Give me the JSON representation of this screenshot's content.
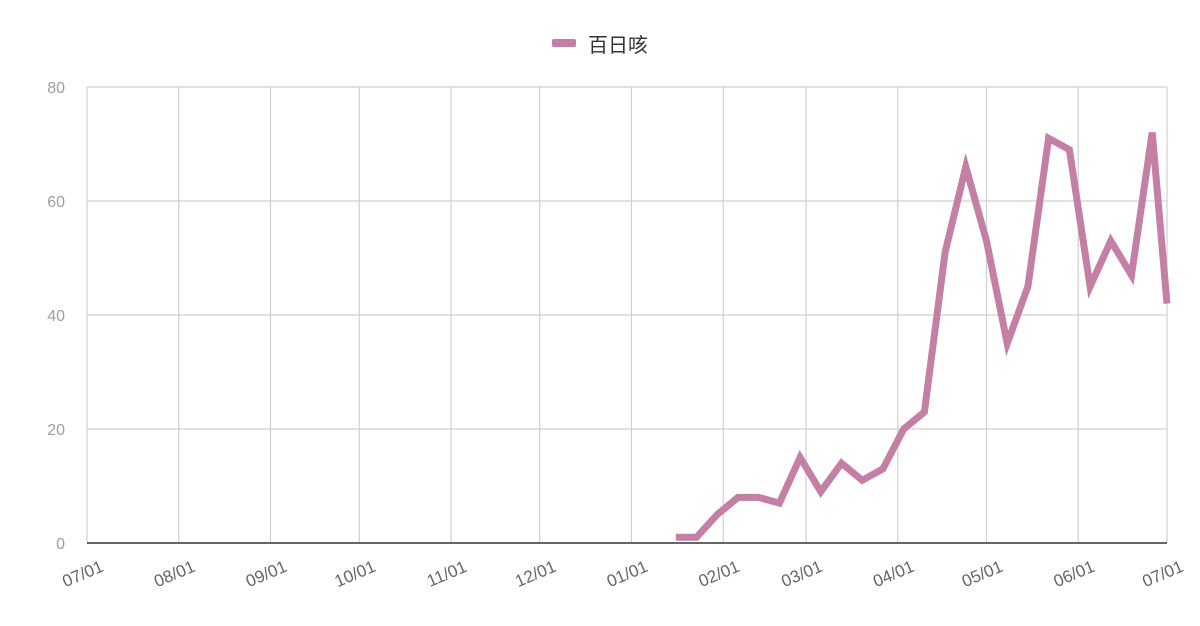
{
  "colors": {
    "series": "#c47fa5",
    "grid": "#d0d0d0",
    "axis": "#333333",
    "y_tick_text": "#9e9e9e",
    "x_tick_text": "#666666"
  },
  "legend": {
    "label": "百日咳",
    "placement": "top-center"
  },
  "chart_data": {
    "type": "line",
    "title": "",
    "xlabel": "",
    "ylabel": "",
    "grid": true,
    "legend_position": "top",
    "x_type": "date",
    "xlim": [
      "2024-07-01",
      "2025-07-01"
    ],
    "ylim": [
      0,
      80
    ],
    "x_tick_labels": [
      "07/01",
      "08/01",
      "09/01",
      "10/01",
      "11/01",
      "12/01",
      "01/01",
      "02/01",
      "03/01",
      "04/01",
      "05/01",
      "06/01",
      "07/01"
    ],
    "x_tick_dates": [
      "2024-07-01",
      "2024-08-01",
      "2024-09-01",
      "2024-10-01",
      "2024-11-01",
      "2024-12-01",
      "2025-01-01",
      "2025-02-01",
      "2025-03-01",
      "2025-04-01",
      "2025-05-01",
      "2025-06-01",
      "2025-07-01"
    ],
    "y_ticks": [
      0,
      20,
      40,
      60,
      80
    ],
    "series": [
      {
        "name": "百日咳",
        "color": "#c47fa5",
        "points": [
          {
            "x": "2025-01-16",
            "y": 1
          },
          {
            "x": "2025-01-23",
            "y": 1
          },
          {
            "x": "2025-01-30",
            "y": 5
          },
          {
            "x": "2025-02-06",
            "y": 8
          },
          {
            "x": "2025-02-13",
            "y": 8
          },
          {
            "x": "2025-02-20",
            "y": 7
          },
          {
            "x": "2025-02-27",
            "y": 15
          },
          {
            "x": "2025-03-06",
            "y": 9
          },
          {
            "x": "2025-03-13",
            "y": 14
          },
          {
            "x": "2025-03-20",
            "y": 11
          },
          {
            "x": "2025-03-27",
            "y": 13
          },
          {
            "x": "2025-04-03",
            "y": 20
          },
          {
            "x": "2025-04-10",
            "y": 23
          },
          {
            "x": "2025-04-17",
            "y": 51
          },
          {
            "x": "2025-04-24",
            "y": 66
          },
          {
            "x": "2025-05-01",
            "y": 53
          },
          {
            "x": "2025-05-08",
            "y": 35
          },
          {
            "x": "2025-05-15",
            "y": 45
          },
          {
            "x": "2025-05-22",
            "y": 71
          },
          {
            "x": "2025-05-29",
            "y": 69
          },
          {
            "x": "2025-06-05",
            "y": 45
          },
          {
            "x": "2025-06-12",
            "y": 53
          },
          {
            "x": "2025-06-19",
            "y": 47
          },
          {
            "x": "2025-06-26",
            "y": 72
          },
          {
            "x": "2025-07-01",
            "y": 42
          }
        ]
      }
    ]
  }
}
